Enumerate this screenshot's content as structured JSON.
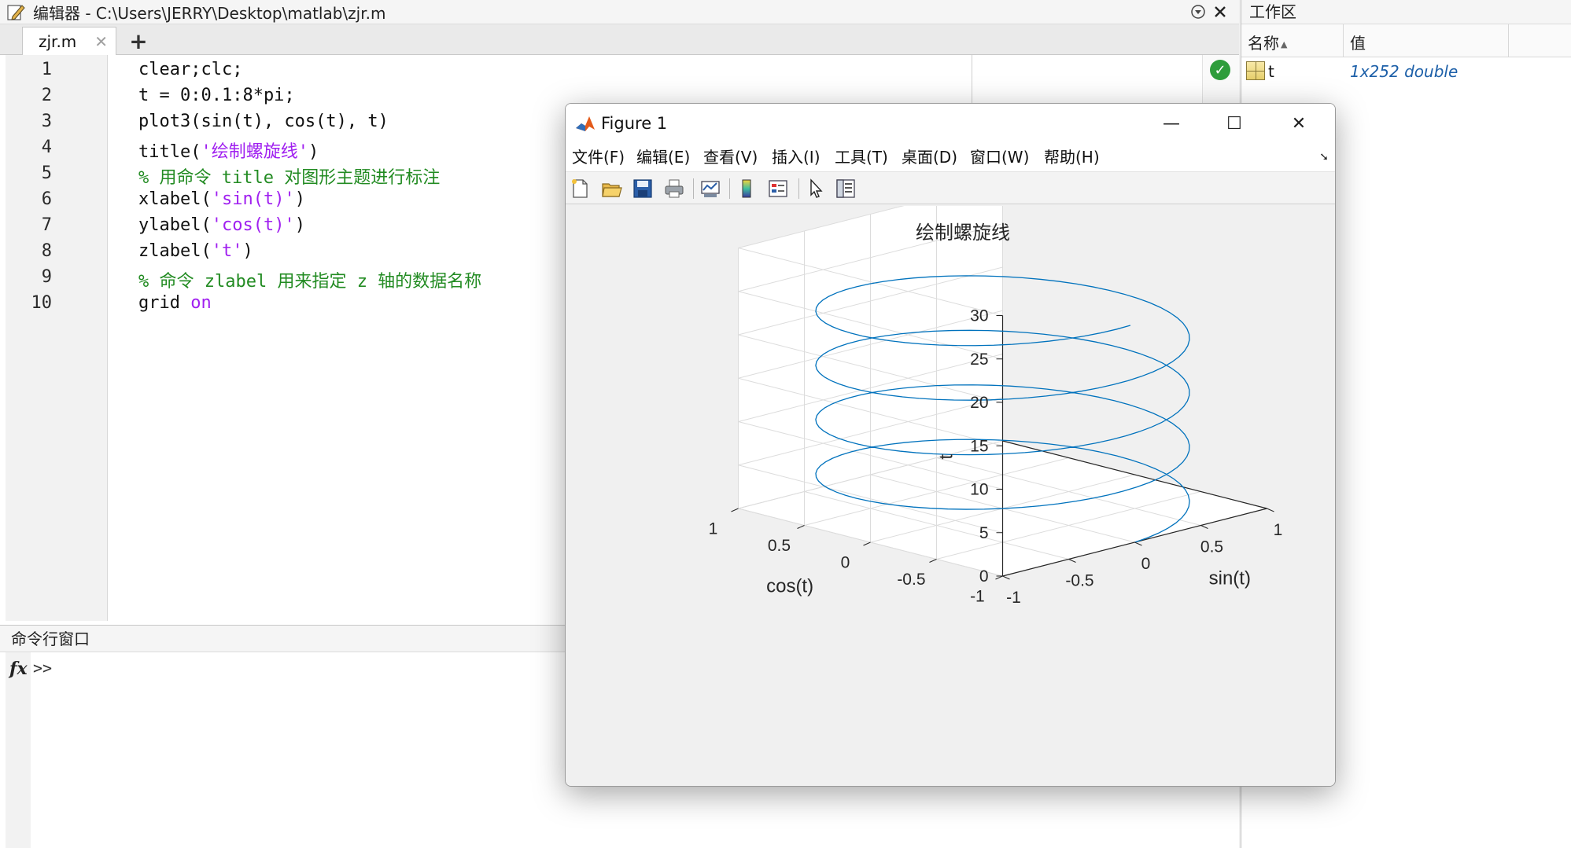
{
  "editor": {
    "title": "编辑器 - C:\\Users\\JERRY\\Desktop\\matlab\\zjr.m",
    "tab_label": "zjr.m",
    "tab_close": "✕",
    "add_tab": "+",
    "lines": [
      {
        "num": "1",
        "segments": [
          {
            "t": "clear;clc;",
            "c": "plain"
          }
        ]
      },
      {
        "num": "2",
        "segments": [
          {
            "t": "t = 0:0.1:8*pi;",
            "c": "plain"
          }
        ]
      },
      {
        "num": "3",
        "segments": [
          {
            "t": "plot3(sin(t), cos(t), t)",
            "c": "plain"
          }
        ]
      },
      {
        "num": "4",
        "segments": [
          {
            "t": "title(",
            "c": "plain"
          },
          {
            "t": "'绘制螺旋线'",
            "c": "str"
          },
          {
            "t": ")",
            "c": "plain"
          }
        ]
      },
      {
        "num": "5",
        "segments": [
          {
            "t": "% 用命令 title 对图形主题进行标注",
            "c": "cmt"
          }
        ]
      },
      {
        "num": "6",
        "segments": [
          {
            "t": "xlabel(",
            "c": "plain"
          },
          {
            "t": "'sin(t)'",
            "c": "str"
          },
          {
            "t": ")",
            "c": "plain"
          }
        ]
      },
      {
        "num": "7",
        "segments": [
          {
            "t": "ylabel(",
            "c": "plain"
          },
          {
            "t": "'cos(t)'",
            "c": "str"
          },
          {
            "t": ")",
            "c": "plain"
          }
        ]
      },
      {
        "num": "8",
        "segments": [
          {
            "t": "zlabel(",
            "c": "plain"
          },
          {
            "t": "'t'",
            "c": "str"
          },
          {
            "t": ")",
            "c": "plain"
          }
        ]
      },
      {
        "num": "9",
        "segments": [
          {
            "t": "% 命令 zlabel 用来指定 z 轴的数据名称",
            "c": "cmt"
          }
        ]
      },
      {
        "num": "10",
        "segments": [
          {
            "t": "grid ",
            "c": "plain"
          },
          {
            "t": "on",
            "c": "str"
          }
        ]
      }
    ]
  },
  "command_window": {
    "title": "命令行窗口",
    "fx": "fx",
    "prompt": ">>"
  },
  "workspace": {
    "title": "工作区",
    "col_name": "名称",
    "col_value": "值",
    "variables": [
      {
        "name": "t",
        "value": "1x252 double"
      }
    ]
  },
  "figure": {
    "title": "Figure 1",
    "minimize": "—",
    "maximize": "☐",
    "close": "✕",
    "menus": [
      "文件(F)",
      "编辑(E)",
      "查看(V)",
      "插入(I)",
      "工具(T)",
      "桌面(D)",
      "窗口(W)",
      "帮助(H)"
    ],
    "toolbar": [
      "new-figure",
      "open-file",
      "save",
      "print",
      "link-plot",
      "colorbar",
      "legend",
      "edit-plot",
      "property-inspector"
    ]
  },
  "chart_data": {
    "type": "line",
    "projection": "3d",
    "title": "绘制螺旋线",
    "xlabel": "sin(t)",
    "ylabel": "cos(t)",
    "zlabel": "t",
    "t_range": [
      0,
      25.1
    ],
    "t_step": 0.1,
    "x_expr": "sin(t)",
    "y_expr": "cos(t)",
    "z_expr": "t",
    "xlim": [
      -1,
      1
    ],
    "ylim": [
      -1,
      1
    ],
    "zlim": [
      0,
      30
    ],
    "x_ticks": [
      "-1",
      "-0.5",
      "0",
      "0.5",
      "1"
    ],
    "y_ticks": [
      "-1",
      "-0.5",
      "0",
      "0.5",
      "1"
    ],
    "z_ticks": [
      "0",
      "5",
      "10",
      "15",
      "20",
      "25",
      "30"
    ],
    "grid": true,
    "series_color": "#0072BD"
  }
}
